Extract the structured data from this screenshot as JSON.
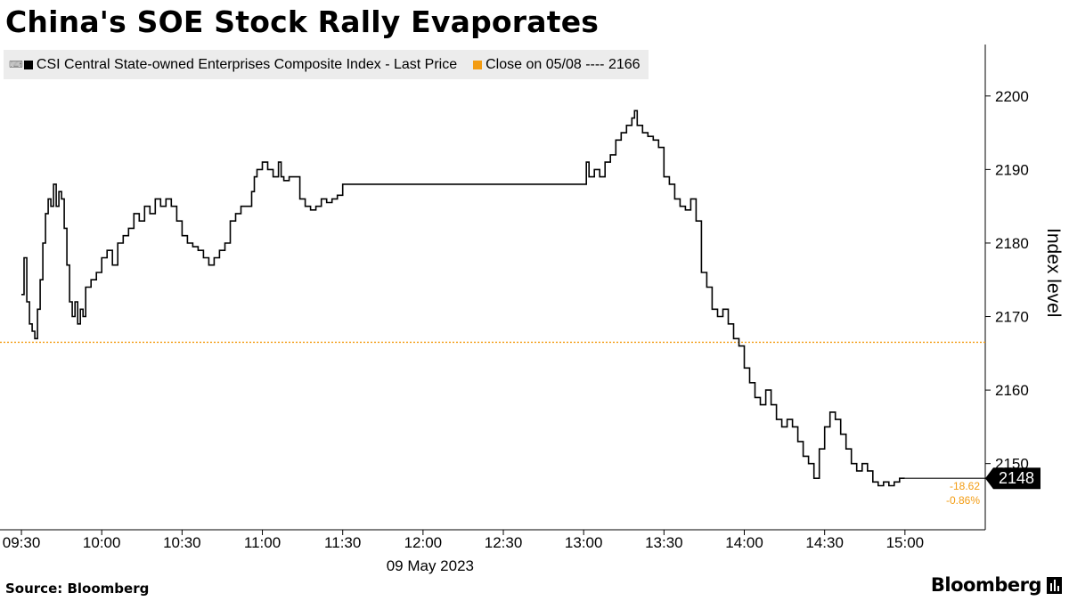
{
  "title": "China's SOE Stock Rally Evaporates",
  "legend": {
    "series_label": "CSI Central State-owned Enterprises Composite Index - Last Price",
    "close_label": "Close on 05/08 ---- 2166",
    "series_color": "#000000",
    "close_color": "#f39c12"
  },
  "source": "Source: Bloomberg",
  "brand": "Bloomberg",
  "chart_data": {
    "type": "line",
    "title": "China's SOE Stock Rally Evaporates",
    "xlabel": "09 May 2023",
    "ylabel": "Index level",
    "x_ticks": [
      "09:30",
      "10:00",
      "10:30",
      "11:00",
      "11:30",
      "12:00",
      "12:30",
      "13:00",
      "13:30",
      "14:00",
      "14:30",
      "15:00"
    ],
    "y_ticks": [
      2150,
      2160,
      2170,
      2180,
      2190,
      2200
    ],
    "xlim": [
      "09:22",
      "15:30"
    ],
    "ylim": [
      2141,
      2207
    ],
    "grid": false,
    "legend_position": "top-left",
    "reference_line": {
      "label": "Close on 05/08",
      "value": 2166.5
    },
    "last_value_label": "2148",
    "change_labels": [
      "-18.62",
      "-0.86%"
    ],
    "series": [
      {
        "name": "CSI Central State-owned Enterprises Composite Index - Last Price",
        "points": [
          [
            "09:30",
            2173
          ],
          [
            "09:31",
            2178
          ],
          [
            "09:32",
            2172
          ],
          [
            "09:33",
            2169
          ],
          [
            "09:34",
            2168
          ],
          [
            "09:35",
            2167
          ],
          [
            "09:36",
            2171
          ],
          [
            "09:37",
            2175
          ],
          [
            "09:38",
            2180
          ],
          [
            "09:39",
            2184
          ],
          [
            "09:40",
            2186
          ],
          [
            "09:41",
            2185
          ],
          [
            "09:42",
            2188
          ],
          [
            "09:43",
            2185
          ],
          [
            "09:44",
            2187
          ],
          [
            "09:45",
            2186
          ],
          [
            "09:46",
            2182
          ],
          [
            "09:47",
            2177
          ],
          [
            "09:48",
            2172
          ],
          [
            "09:49",
            2170
          ],
          [
            "09:50",
            2172
          ],
          [
            "09:51",
            2169
          ],
          [
            "09:52",
            2171
          ],
          [
            "09:53",
            2170
          ],
          [
            "09:54",
            2174
          ],
          [
            "09:56",
            2175
          ],
          [
            "09:58",
            2176
          ],
          [
            "10:00",
            2178
          ],
          [
            "10:02",
            2179
          ],
          [
            "10:04",
            2177
          ],
          [
            "10:06",
            2180
          ],
          [
            "10:08",
            2181
          ],
          [
            "10:10",
            2182
          ],
          [
            "10:12",
            2184
          ],
          [
            "10:14",
            2183
          ],
          [
            "10:16",
            2185
          ],
          [
            "10:18",
            2184
          ],
          [
            "10:20",
            2186
          ],
          [
            "10:22",
            2185
          ],
          [
            "10:24",
            2186
          ],
          [
            "10:26",
            2185
          ],
          [
            "10:28",
            2183
          ],
          [
            "10:30",
            2181
          ],
          [
            "10:32",
            2180
          ],
          [
            "10:34",
            2179.5
          ],
          [
            "10:36",
            2179
          ],
          [
            "10:38",
            2178
          ],
          [
            "10:40",
            2177
          ],
          [
            "10:42",
            2178
          ],
          [
            "10:44",
            2179
          ],
          [
            "10:46",
            2180
          ],
          [
            "10:48",
            2183
          ],
          [
            "10:50",
            2184
          ],
          [
            "10:52",
            2185
          ],
          [
            "10:54",
            2185
          ],
          [
            "10:56",
            2187
          ],
          [
            "10:57",
            2189
          ],
          [
            "10:58",
            2190
          ],
          [
            "11:00",
            2191
          ],
          [
            "11:02",
            2190
          ],
          [
            "11:04",
            2189
          ],
          [
            "11:06",
            2191
          ],
          [
            "11:07",
            2189
          ],
          [
            "11:08",
            2188.5
          ],
          [
            "11:10",
            2189
          ],
          [
            "11:12",
            2189
          ],
          [
            "11:14",
            2186
          ],
          [
            "11:16",
            2185
          ],
          [
            "11:18",
            2184.5
          ],
          [
            "11:20",
            2185
          ],
          [
            "11:22",
            2186
          ],
          [
            "11:24",
            2185.5
          ],
          [
            "11:26",
            2186
          ],
          [
            "11:28",
            2186.5
          ],
          [
            "11:30",
            2188
          ],
          [
            "13:00",
            2188
          ],
          [
            "13:01",
            2191
          ],
          [
            "13:02",
            2189
          ],
          [
            "13:04",
            2190
          ],
          [
            "13:06",
            2189
          ],
          [
            "13:08",
            2191
          ],
          [
            "13:10",
            2192
          ],
          [
            "13:12",
            2194
          ],
          [
            "13:14",
            2195
          ],
          [
            "13:16",
            2196
          ],
          [
            "13:18",
            2197
          ],
          [
            "13:19",
            2198
          ],
          [
            "13:20",
            2196
          ],
          [
            "13:22",
            2195
          ],
          [
            "13:24",
            2194.5
          ],
          [
            "13:26",
            2194
          ],
          [
            "13:28",
            2193
          ],
          [
            "13:30",
            2189
          ],
          [
            "13:32",
            2188
          ],
          [
            "13:34",
            2186
          ],
          [
            "13:36",
            2185
          ],
          [
            "13:38",
            2184.5
          ],
          [
            "13:40",
            2186
          ],
          [
            "13:42",
            2183
          ],
          [
            "13:44",
            2176
          ],
          [
            "13:46",
            2174
          ],
          [
            "13:48",
            2171
          ],
          [
            "13:50",
            2170
          ],
          [
            "13:52",
            2171
          ],
          [
            "13:54",
            2169
          ],
          [
            "13:56",
            2167
          ],
          [
            "13:58",
            2166
          ],
          [
            "14:00",
            2163
          ],
          [
            "14:02",
            2161
          ],
          [
            "14:04",
            2159
          ],
          [
            "14:06",
            2158
          ],
          [
            "14:08",
            2160
          ],
          [
            "14:10",
            2158
          ],
          [
            "14:12",
            2156
          ],
          [
            "14:14",
            2155
          ],
          [
            "14:16",
            2156
          ],
          [
            "14:18",
            2155
          ],
          [
            "14:20",
            2153
          ],
          [
            "14:22",
            2151
          ],
          [
            "14:24",
            2150
          ],
          [
            "14:26",
            2148
          ],
          [
            "14:28",
            2152
          ],
          [
            "14:30",
            2155
          ],
          [
            "14:32",
            2157
          ],
          [
            "14:34",
            2156
          ],
          [
            "14:36",
            2154
          ],
          [
            "14:38",
            2152
          ],
          [
            "14:40",
            2150
          ],
          [
            "14:42",
            2149
          ],
          [
            "14:44",
            2150
          ],
          [
            "14:46",
            2149
          ],
          [
            "14:48",
            2147.5
          ],
          [
            "14:50",
            2147
          ],
          [
            "14:52",
            2147.5
          ],
          [
            "14:54",
            2147
          ],
          [
            "14:56",
            2147.5
          ],
          [
            "14:58",
            2148
          ],
          [
            "15:00",
            2148
          ]
        ]
      }
    ]
  }
}
